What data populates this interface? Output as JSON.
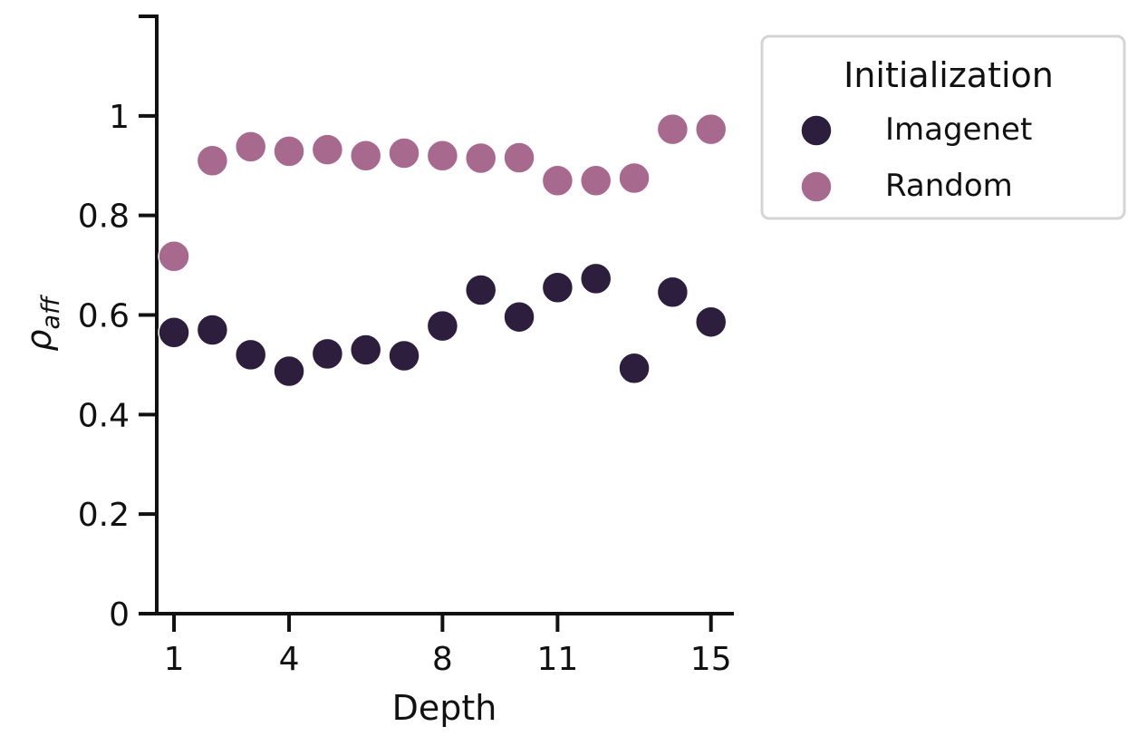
{
  "chart_data": {
    "type": "scatter",
    "xlabel": "Depth",
    "ylabel": "ρ",
    "ylabel_subscript": "aff",
    "xlim": [
      0.55,
      15.55
    ],
    "ylim": [
      0,
      1.2
    ],
    "xticks": [
      1,
      4,
      8,
      11,
      15
    ],
    "yticks": [
      0,
      0.2,
      0.4,
      0.6,
      0.8,
      1
    ],
    "ytick_labels": [
      "0",
      "0.2",
      "0.4",
      "0.6",
      "0.8",
      "1"
    ],
    "grid": false,
    "legend": {
      "title": "Initialization",
      "placement": "outside-top-right"
    },
    "series": [
      {
        "name": "Imagenet",
        "color": "#2d1e3e",
        "x": [
          1,
          2,
          3,
          4,
          5,
          6,
          7,
          8,
          9,
          10,
          11,
          12,
          13,
          14,
          15
        ],
        "y": [
          0.565,
          0.57,
          0.52,
          0.487,
          0.522,
          0.53,
          0.518,
          0.578,
          0.65,
          0.596,
          0.655,
          0.673,
          0.493,
          0.646,
          0.586
        ]
      },
      {
        "name": "Random",
        "color": "#a8698f",
        "x": [
          1,
          2,
          3,
          4,
          5,
          6,
          7,
          8,
          9,
          10,
          11,
          12,
          13,
          14,
          15
        ],
        "y": [
          0.718,
          0.91,
          0.938,
          0.929,
          0.932,
          0.92,
          0.925,
          0.92,
          0.915,
          0.916,
          0.87,
          0.87,
          0.875,
          0.973,
          0.973
        ]
      }
    ]
  }
}
